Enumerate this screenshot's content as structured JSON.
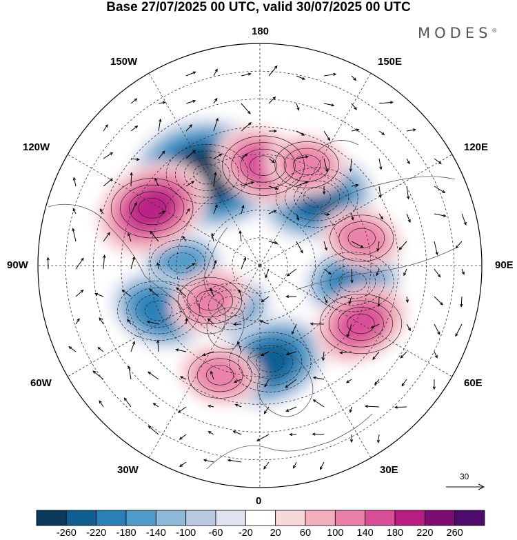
{
  "title": "Base 27/07/2025 00 UTC, valid 30/07/2025 00 UTC",
  "brand": "MODES",
  "brand_mark": "®",
  "longitude_labels": {
    "top": "180",
    "bottom": "0",
    "left": "90W",
    "right": "90E",
    "upper_left": "150W",
    "upper_right": "150E",
    "mid_upper_left": "120W",
    "mid_upper_right": "120E",
    "mid_lower_left": "60W",
    "mid_lower_right": "60E",
    "lower_left": "30W",
    "lower_right": "30E"
  },
  "wind_scale": {
    "label": "30"
  },
  "colorbar": {
    "ticks": [
      "-260",
      "-220",
      "-180",
      "-140",
      "-100",
      "-60",
      "-20",
      "20",
      "60",
      "100",
      "140",
      "180",
      "220",
      "260"
    ],
    "colors": [
      "#0b3a5c",
      "#105e91",
      "#2a7fb6",
      "#4f9bc9",
      "#8fb7d8",
      "#bac9e2",
      "#e1e3f0",
      "#ffffff",
      "#f7d9dc",
      "#f2aebd",
      "#ea7fa8",
      "#d94c96",
      "#b91d84",
      "#7e0c72",
      "#4e0b6e"
    ]
  },
  "anomaly_centers": [
    {
      "name": "negative-center-north-pacific",
      "lon": -150,
      "lat": 52,
      "value": -260
    },
    {
      "name": "negative-center-east-siberia",
      "lon": 140,
      "lat": 58,
      "value": -200
    },
    {
      "name": "negative-center-europe",
      "lon": 6,
      "lat": 55,
      "value": -200
    },
    {
      "name": "negative-center-hudson-bay",
      "lon": -92,
      "lat": 62,
      "value": -120
    },
    {
      "name": "negative-center-labrador",
      "lon": -66,
      "lat": 50,
      "value": -140
    },
    {
      "name": "negative-center-west-siberia",
      "lon": 80,
      "lat": 56,
      "value": -140
    },
    {
      "name": "negative-center-greenland",
      "lon": -35,
      "lat": 72,
      "value": -100
    },
    {
      "name": "positive-center-gulf-of-alaska",
      "lon": -118,
      "lat": 46,
      "value": 200
    },
    {
      "name": "positive-center-bering",
      "lon": 178,
      "lat": 54,
      "value": 140
    },
    {
      "name": "positive-center-okhotsk",
      "lon": 155,
      "lat": 50,
      "value": 120
    },
    {
      "name": "positive-center-central-siberia",
      "lon": 105,
      "lat": 52,
      "value": 120
    },
    {
      "name": "positive-center-kazakhstan",
      "lon": 60,
      "lat": 48,
      "value": 160
    },
    {
      "name": "positive-center-north-atlantic",
      "lon": -20,
      "lat": 48,
      "value": 120
    },
    {
      "name": "positive-center-baffin",
      "lon": -55,
      "lat": 68,
      "value": 100
    }
  ]
}
